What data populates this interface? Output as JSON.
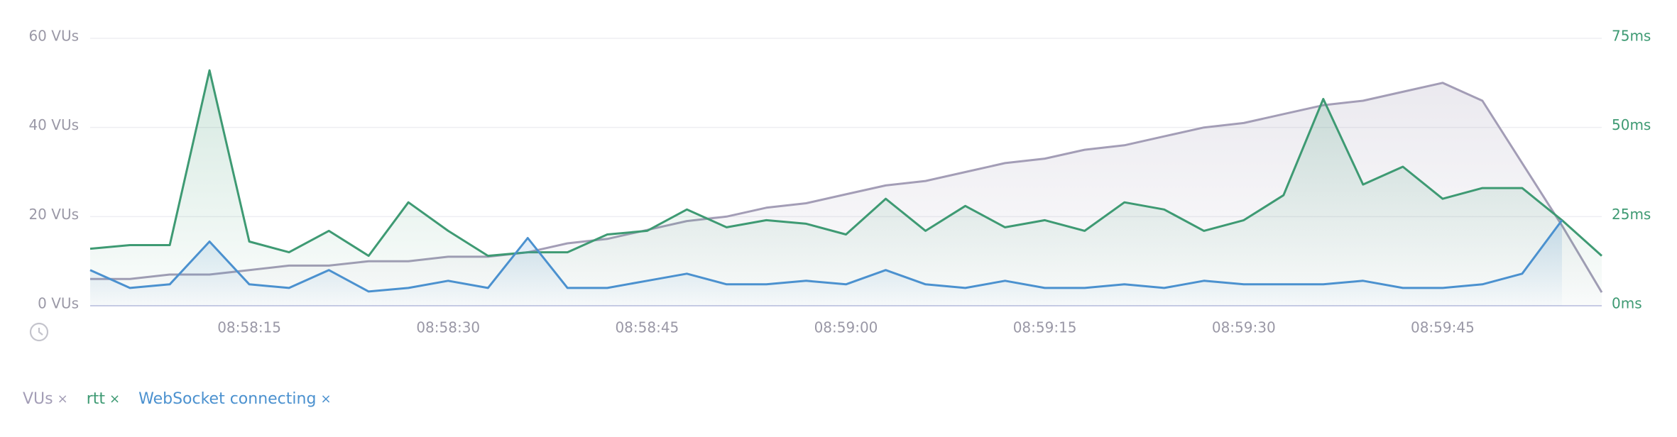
{
  "chart_data": {
    "type": "line",
    "x": [
      "08:58:03",
      "08:58:06",
      "08:58:09",
      "08:58:12",
      "08:58:15",
      "08:58:18",
      "08:58:21",
      "08:58:24",
      "08:58:27",
      "08:58:30",
      "08:58:33",
      "08:58:36",
      "08:58:39",
      "08:58:42",
      "08:58:45",
      "08:58:48",
      "08:58:51",
      "08:58:54",
      "08:58:57",
      "08:59:00",
      "08:59:03",
      "08:59:06",
      "08:59:09",
      "08:59:12",
      "08:59:15",
      "08:59:18",
      "08:59:21",
      "08:59:24",
      "08:59:27",
      "08:59:30",
      "08:59:33",
      "08:59:36",
      "08:59:39",
      "08:59:42",
      "08:59:45",
      "08:59:48",
      "08:59:51",
      "08:59:54",
      "08:59:57"
    ],
    "xlim": [
      "08:58:03",
      "08:59:57"
    ],
    "xticks": [
      "08:58:15",
      "08:58:30",
      "08:58:45",
      "08:59:00",
      "08:59:15",
      "08:59:30",
      "08:59:45"
    ],
    "ylim": [
      0,
      60
    ],
    "yticks": [
      {
        "value": 0,
        "label": "0 VUs"
      },
      {
        "value": 20,
        "label": "20 VUs"
      },
      {
        "value": 40,
        "label": "40 VUs"
      },
      {
        "value": 60,
        "label": "60 VUs"
      }
    ],
    "y2lim": [
      0,
      75
    ],
    "y2ticks": [
      {
        "value": 0,
        "label": "0ms"
      },
      {
        "value": 25,
        "label": "25ms"
      },
      {
        "value": 50,
        "label": "50ms"
      },
      {
        "value": 75,
        "label": "75ms"
      }
    ],
    "grid": true,
    "legend_close": "×",
    "series": [
      {
        "name": "VUs",
        "color": "#a39db6",
        "values": [
          6,
          6,
          7,
          7,
          8,
          9,
          9,
          10,
          10,
          11,
          11,
          12,
          14,
          15,
          17,
          19,
          20,
          22,
          23,
          25,
          27,
          28,
          30,
          32,
          33,
          35,
          36,
          38,
          40,
          41,
          43,
          45,
          46,
          48,
          50,
          46,
          32,
          18,
          3
        ]
      },
      {
        "name": "rtt",
        "color": "#3e9a73",
        "axis": "y2",
        "values": [
          16,
          17,
          17,
          66,
          18,
          15,
          21,
          14,
          29,
          21,
          14,
          15,
          15,
          20,
          21,
          27,
          22,
          24,
          23,
          20,
          30,
          21,
          28,
          22,
          24,
          21,
          29,
          27,
          21,
          24,
          31,
          58,
          34,
          39,
          30,
          33,
          33,
          24,
          14
        ]
      },
      {
        "name": "WebSocket connecting",
        "color": "#4b91cf",
        "axis": "y2",
        "values": [
          10,
          5,
          6,
          18,
          6,
          5,
          10,
          4,
          5,
          7,
          5,
          19,
          5,
          5,
          7,
          9,
          6,
          6,
          7,
          6,
          10,
          6,
          5,
          7,
          5,
          5,
          6,
          5,
          7,
          6,
          6,
          6,
          7,
          5,
          5,
          6,
          9,
          24,
          null
        ]
      }
    ]
  }
}
